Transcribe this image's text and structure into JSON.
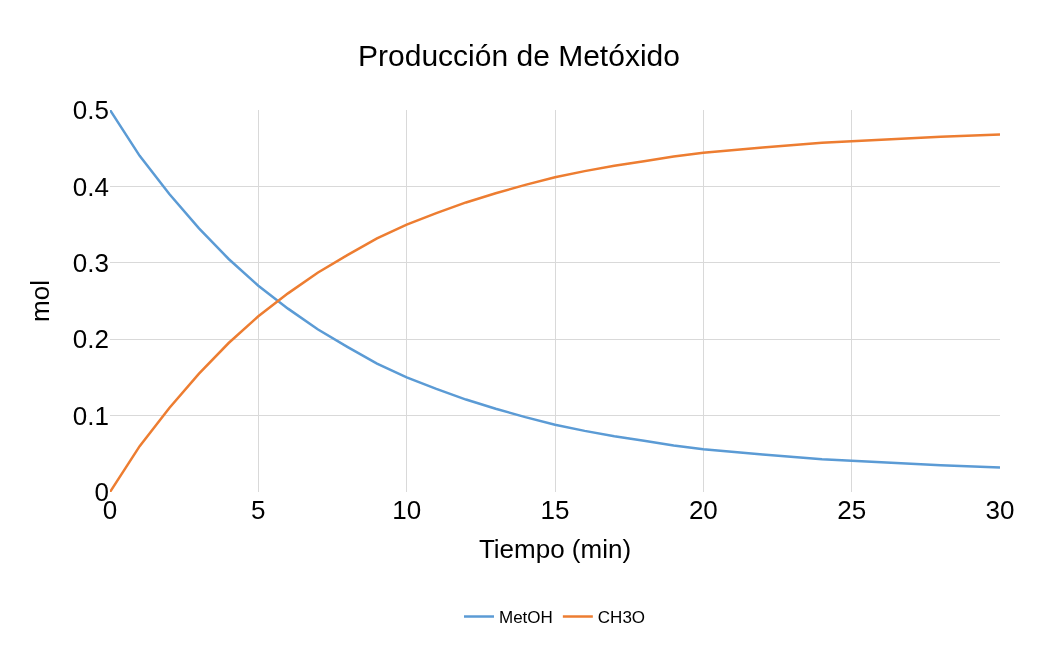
{
  "chart_data": {
    "type": "line",
    "title": "Producción de Metóxido",
    "xlabel": "Tiempo (min)",
    "ylabel": "mol",
    "x": [
      0,
      1,
      2,
      3,
      4,
      5,
      6,
      7,
      8,
      9,
      10,
      11,
      12,
      13,
      14,
      15,
      16,
      17,
      18,
      19,
      20,
      22,
      24,
      26,
      28,
      30
    ],
    "series": [
      {
        "name": "MetOH",
        "color": "#5b9bd5",
        "values": [
          0.5,
          0.44,
          0.39,
          0.345,
          0.305,
          0.27,
          0.24,
          0.213,
          0.19,
          0.168,
          0.15,
          0.135,
          0.121,
          0.109,
          0.098,
          0.088,
          0.08,
          0.073,
          0.067,
          0.061,
          0.056,
          0.049,
          0.043,
          0.039,
          0.035,
          0.032
        ]
      },
      {
        "name": "CH3O",
        "color": "#ed7d31",
        "values": [
          0,
          0.06,
          0.11,
          0.155,
          0.195,
          0.23,
          0.26,
          0.287,
          0.31,
          0.332,
          0.35,
          0.365,
          0.379,
          0.391,
          0.402,
          0.412,
          0.42,
          0.427,
          0.433,
          0.439,
          0.444,
          0.451,
          0.457,
          0.461,
          0.465,
          0.468
        ]
      }
    ],
    "xlim": [
      0,
      30
    ],
    "xticks": [
      0,
      5,
      10,
      15,
      20,
      25,
      30
    ],
    "ylim": [
      0,
      0.5
    ],
    "yticks": [
      0,
      0.1,
      0.2,
      0.3,
      0.4,
      0.5
    ],
    "grid": true,
    "legend": "bottom",
    "marker": "none",
    "line_style": "solid"
  }
}
